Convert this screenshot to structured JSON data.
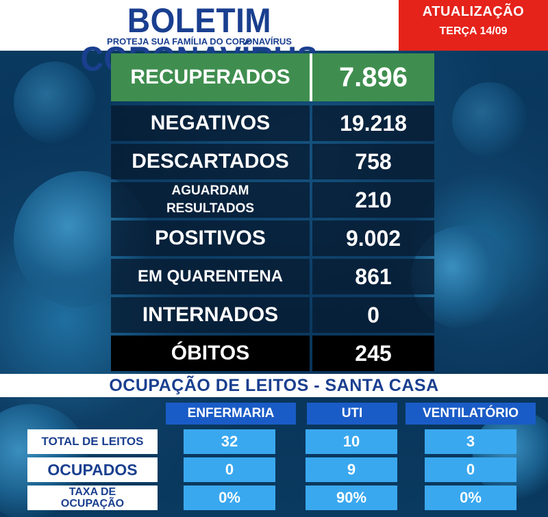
{
  "header": {
    "title": "BOLETIM CORONAVÍRUS",
    "subtitle": "PROTEJA SUA FAMÍLIA DO CORONAVÍRUS",
    "update_label": "ATUALIZAÇÃO",
    "update_date": "TERÇA 14/09"
  },
  "stats": {
    "recuperados": {
      "label": "RECUPERADOS",
      "value": "7.896"
    },
    "negativos": {
      "label": "NEGATIVOS",
      "value": "19.218"
    },
    "descartados": {
      "label": "DESCARTADOS",
      "value": "758"
    },
    "aguardam": {
      "label_line1": "AGUARDAM",
      "label_line2": "RESULTADOS",
      "value": "210"
    },
    "positivos": {
      "label": "POSITIVOS",
      "value": "9.002"
    },
    "quarentena": {
      "label": "EM QUARENTENA",
      "value": "861"
    },
    "internados": {
      "label": "INTERNADOS",
      "value": "0"
    },
    "obitos": {
      "label": "ÓBITOS",
      "value": "245"
    }
  },
  "occupancy": {
    "title": "OCUPAÇÃO DE LEITOS - SANTA CASA",
    "columns": [
      "ENFERMARIA",
      "UTI",
      "VENTILATÓRIO"
    ],
    "rows": [
      {
        "label": "TOTAL DE LEITOS",
        "values": [
          "32",
          "10",
          "3"
        ]
      },
      {
        "label": "OCUPADOS",
        "values": [
          "0",
          "9",
          "0"
        ]
      },
      {
        "label_line1": "TAXA DE",
        "label_line2": "OCUPAÇÃO",
        "values": [
          "0%",
          "90%",
          "0%"
        ]
      }
    ]
  },
  "colors": {
    "brand_blue": "#1a3f8f",
    "alert_red": "#e5231b",
    "recovered_green": "#3f8e4f",
    "cell_blue": "#3aa8ef",
    "header_blue": "#1a5cc7"
  }
}
